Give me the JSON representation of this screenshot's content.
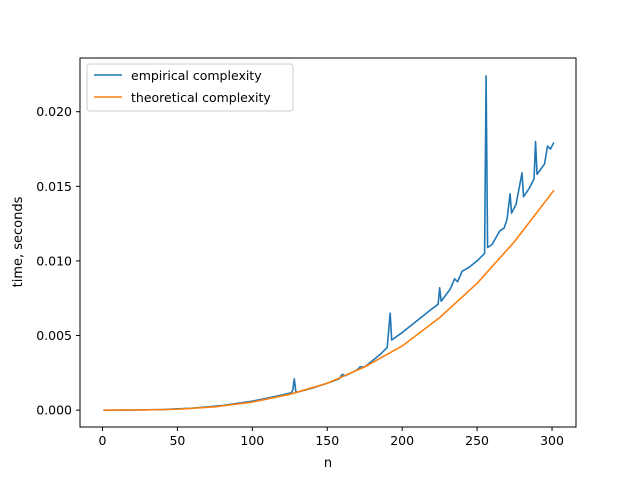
{
  "chart_data": {
    "type": "line",
    "xlabel": "n",
    "ylabel": "time, seconds",
    "xlim": [
      -15,
      316
    ],
    "ylim": [
      -0.00113,
      0.0236
    ],
    "xticks": [
      0,
      50,
      100,
      150,
      200,
      250,
      300
    ],
    "xtick_labels": [
      "0",
      "50",
      "100",
      "150",
      "200",
      "250",
      "300"
    ],
    "yticks": [
      0,
      0.005,
      0.01,
      0.015,
      0.02
    ],
    "ytick_labels": [
      "0.000",
      "0.005",
      "0.010",
      "0.015",
      "0.020"
    ],
    "grid": false,
    "legend_position": "upper-left",
    "series": [
      {
        "name": "empirical complexity",
        "color": "#1f77b4",
        "points": [
          [
            1,
            0.0
          ],
          [
            20,
            1e-05
          ],
          [
            40,
            4e-05
          ],
          [
            60,
            0.00013
          ],
          [
            80,
            0.00031
          ],
          [
            100,
            0.0006
          ],
          [
            110,
            0.0008
          ],
          [
            120,
            0.00102
          ],
          [
            126,
            0.00116
          ],
          [
            127,
            0.00135
          ],
          [
            128,
            0.0021
          ],
          [
            129,
            0.00125
          ],
          [
            130,
            0.0012
          ],
          [
            140,
            0.00148
          ],
          [
            150,
            0.0018
          ],
          [
            158,
            0.0021
          ],
          [
            160,
            0.0024
          ],
          [
            162,
            0.0023
          ],
          [
            170,
            0.0027
          ],
          [
            172,
            0.0029
          ],
          [
            175,
            0.0029
          ],
          [
            180,
            0.0033
          ],
          [
            185,
            0.0037
          ],
          [
            190,
            0.0042
          ],
          [
            192,
            0.0065
          ],
          [
            193,
            0.0047
          ],
          [
            200,
            0.0052
          ],
          [
            210,
            0.006
          ],
          [
            220,
            0.0068
          ],
          [
            224,
            0.0071
          ],
          [
            225,
            0.0082
          ],
          [
            226,
            0.0073
          ],
          [
            232,
            0.0081
          ],
          [
            235,
            0.0088
          ],
          [
            237,
            0.0086
          ],
          [
            240,
            0.0093
          ],
          [
            245,
            0.0096
          ],
          [
            250,
            0.01
          ],
          [
            253,
            0.0103
          ],
          [
            255,
            0.0105
          ],
          [
            256,
            0.0224
          ],
          [
            257,
            0.0109
          ],
          [
            260,
            0.0111
          ],
          [
            265,
            0.012
          ],
          [
            268,
            0.0122
          ],
          [
            270,
            0.0128
          ],
          [
            272,
            0.0145
          ],
          [
            273,
            0.0132
          ],
          [
            276,
            0.0138
          ],
          [
            280,
            0.0159
          ],
          [
            281,
            0.0143
          ],
          [
            285,
            0.0149
          ],
          [
            288,
            0.0155
          ],
          [
            289,
            0.018
          ],
          [
            290,
            0.0158
          ],
          [
            295,
            0.0165
          ],
          [
            297,
            0.0177
          ],
          [
            299,
            0.0175
          ],
          [
            301,
            0.0179
          ]
        ]
      },
      {
        "name": "theoretical complexity",
        "color": "#ff7f0e",
        "points": [
          [
            1,
            0.0
          ],
          [
            25,
            1e-05
          ],
          [
            50,
            6e-05
          ],
          [
            75,
            0.00022
          ],
          [
            100,
            0.00054
          ],
          [
            125,
            0.00106
          ],
          [
            150,
            0.0018
          ],
          [
            175,
            0.0029
          ],
          [
            200,
            0.0043
          ],
          [
            225,
            0.0062
          ],
          [
            250,
            0.0085
          ],
          [
            275,
            0.0113
          ],
          [
            301,
            0.0147
          ]
        ]
      }
    ]
  }
}
